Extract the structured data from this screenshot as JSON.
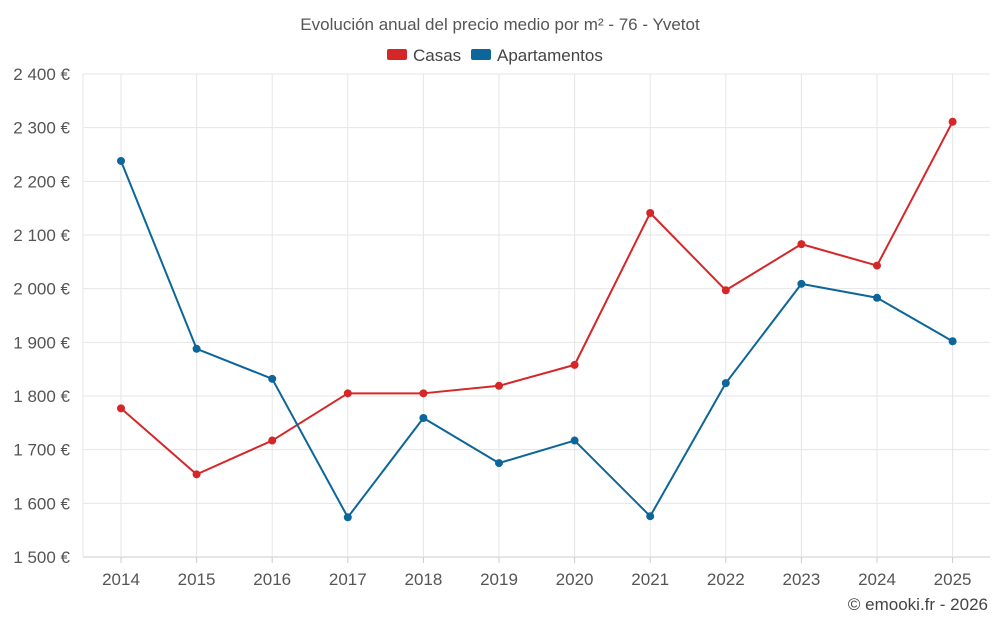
{
  "chart_data": {
    "type": "line",
    "title": "Evolución anual del precio medio por m² - 76 - Yvetot",
    "categories": [
      "2014",
      "2015",
      "2016",
      "2017",
      "2018",
      "2019",
      "2020",
      "2021",
      "2022",
      "2023",
      "2024",
      "2025"
    ],
    "y_ticks": [
      1500,
      1600,
      1700,
      1800,
      1900,
      2000,
      2100,
      2200,
      2300,
      2400
    ],
    "y_tick_labels": [
      "1 500 €",
      "1 600 €",
      "1 700 €",
      "1 800 €",
      "1 900 €",
      "2 000 €",
      "2 100 €",
      "2 200 €",
      "2 300 €",
      "2 400 €"
    ],
    "ylim": [
      1500,
      2400
    ],
    "grid": true,
    "legend_position": "top-center",
    "series": [
      {
        "name": "Casas",
        "color": "#d62728",
        "values": [
          1777,
          1654,
          1717,
          1805,
          1805,
          1819,
          1858,
          2141,
          1997,
          2083,
          2043,
          2311
        ]
      },
      {
        "name": "Apartamentos",
        "color": "#0d6699",
        "values": [
          2238,
          1888,
          1832,
          1574,
          1759,
          1675,
          1717,
          1576,
          1824,
          2009,
          1983,
          1902
        ]
      }
    ]
  },
  "credit": "© emooki.fr - 2026"
}
